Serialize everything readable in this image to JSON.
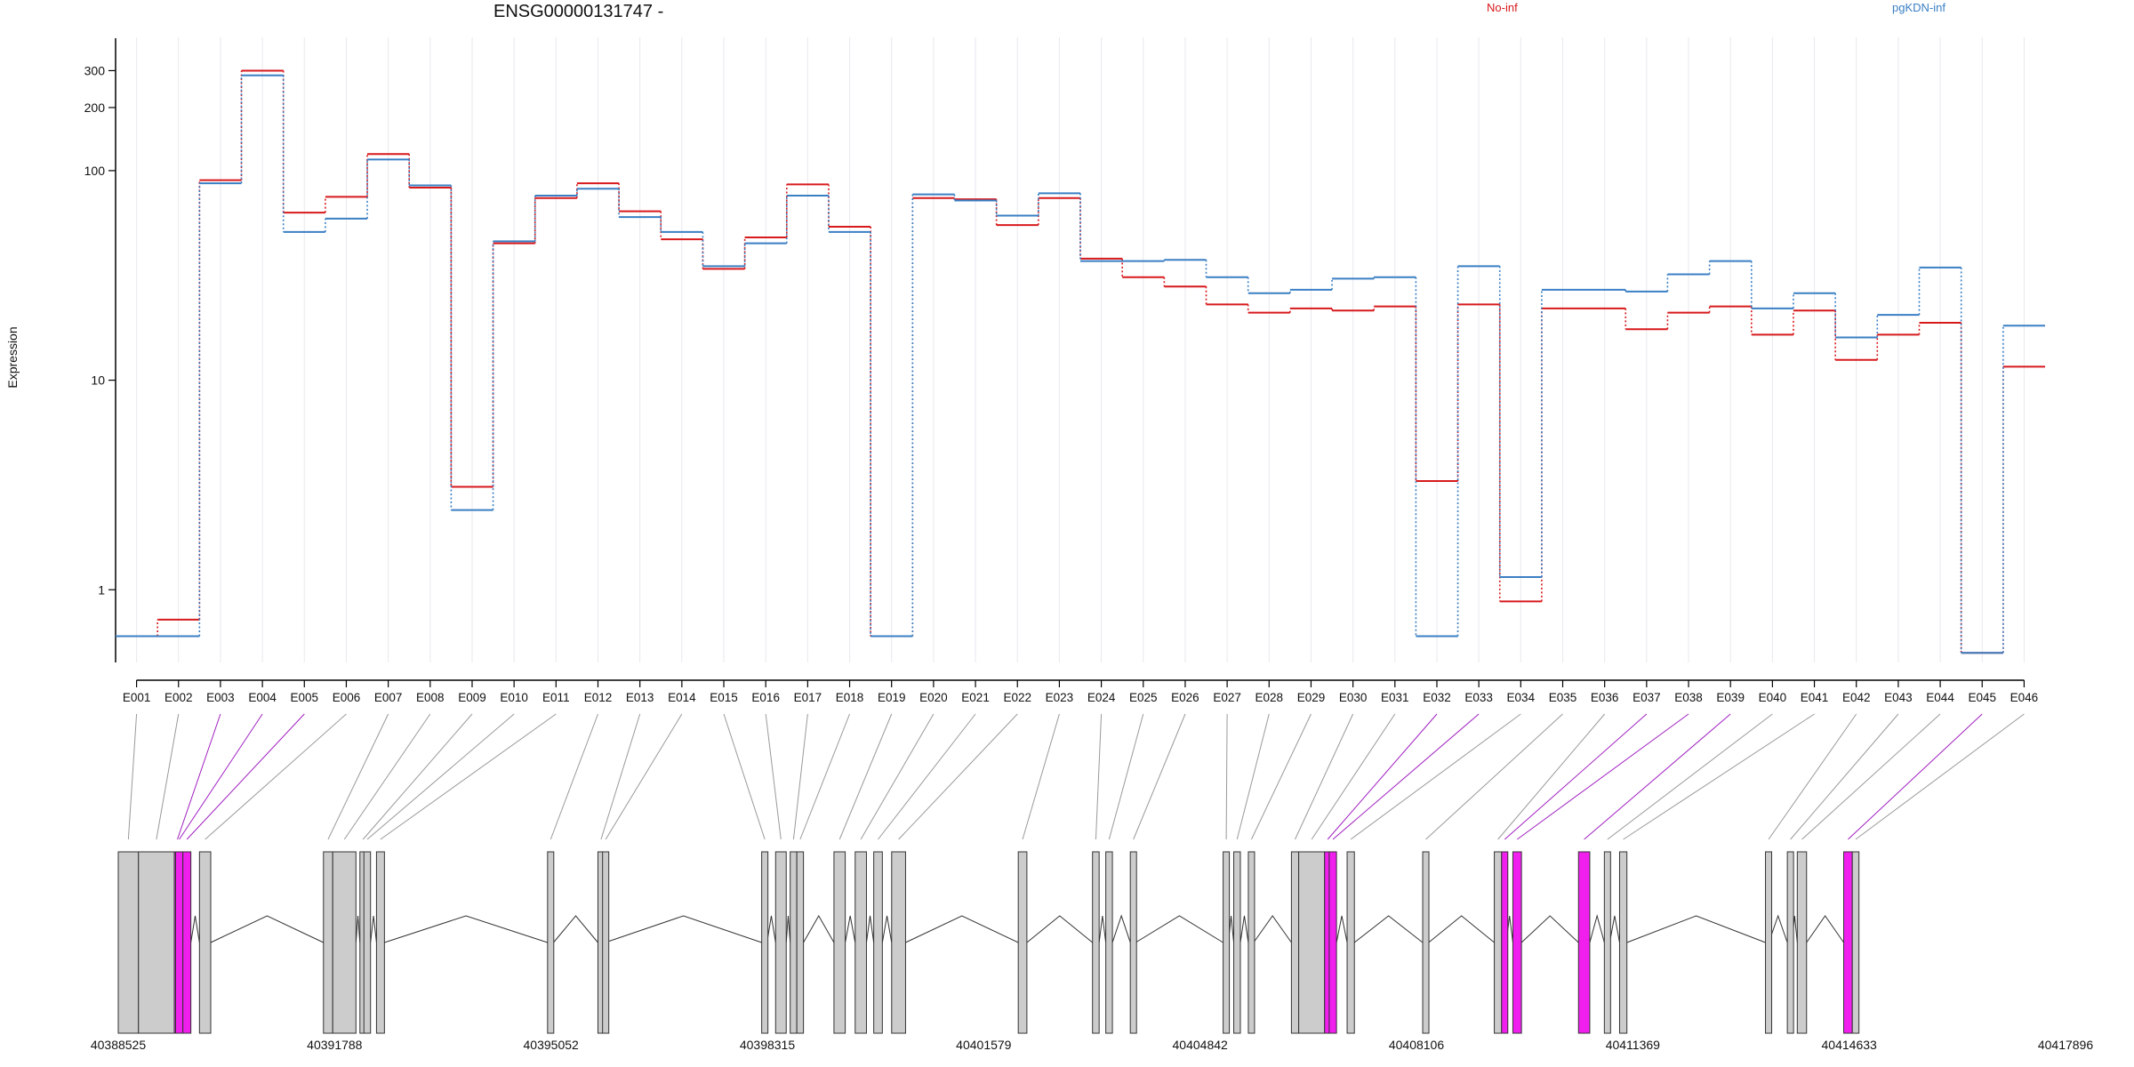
{
  "chart_data": {
    "type": "line",
    "title": "ENSG00000131747 -",
    "ylabel": "Expression",
    "yscale": "log",
    "ylim": [
      0.45,
      420
    ],
    "yticks": [
      1,
      10,
      100,
      200,
      300
    ],
    "ytick_labels": [
      "1",
      "10",
      "100",
      "200",
      "300"
    ],
    "exons": [
      "E001",
      "E002",
      "E003",
      "E004",
      "E005",
      "E006",
      "E007",
      "E008",
      "E009",
      "E010",
      "E011",
      "E012",
      "E013",
      "E014",
      "E015",
      "E016",
      "E017",
      "E018",
      "E019",
      "E020",
      "E021",
      "E022",
      "E023",
      "E024",
      "E025",
      "E026",
      "E027",
      "E028",
      "E029",
      "E030",
      "E031",
      "E032",
      "E033",
      "E034",
      "E035",
      "E036",
      "E037",
      "E038",
      "E039",
      "E040",
      "E041",
      "E042",
      "E043",
      "E044",
      "E045",
      "E046"
    ],
    "series": [
      {
        "name": "No-inf",
        "color": "#d7191c",
        "values": [
          0.6,
          0.72,
          90,
          300,
          63,
          75,
          120,
          83,
          3.1,
          45,
          74,
          87,
          64,
          47,
          34,
          48,
          86,
          54,
          0.6,
          74,
          73,
          55,
          74,
          38,
          31,
          28,
          23,
          21,
          22,
          21.5,
          22.5,
          3.3,
          23,
          0.88,
          22,
          22,
          17.5,
          21,
          22.5,
          16.5,
          21.5,
          12.5,
          16.5,
          18.8,
          0.5,
          11.6
        ]
      },
      {
        "name": "pgKDN-inf",
        "color": "#3a7fc4",
        "values": [
          0.6,
          0.6,
          87,
          285,
          51,
          59,
          113,
          85,
          2.4,
          46,
          76,
          82,
          60,
          51,
          35,
          45,
          76,
          51,
          0.6,
          77,
          72,
          61,
          78,
          37,
          37,
          37.5,
          31,
          26,
          27,
          30.5,
          31,
          0.6,
          35,
          1.15,
          27,
          27,
          26.5,
          32,
          37,
          22,
          26,
          16,
          20.5,
          34.5,
          0.5,
          18.2
        ]
      }
    ],
    "x_axis_labels": [
      "40388525",
      "40391788",
      "40395052",
      "40398315",
      "40401579",
      "40404842",
      "40408106",
      "40411369",
      "40414633",
      "40417896"
    ],
    "gene_model": {
      "genomic_range": [
        40388525,
        40417896
      ],
      "highlight_color": "#f01fee",
      "exon_color": "#cccccc",
      "highlighted_exons": [
        "E003",
        "E004",
        "E005",
        "E032",
        "E033",
        "E037",
        "E038",
        "E039",
        "E045"
      ]
    }
  }
}
